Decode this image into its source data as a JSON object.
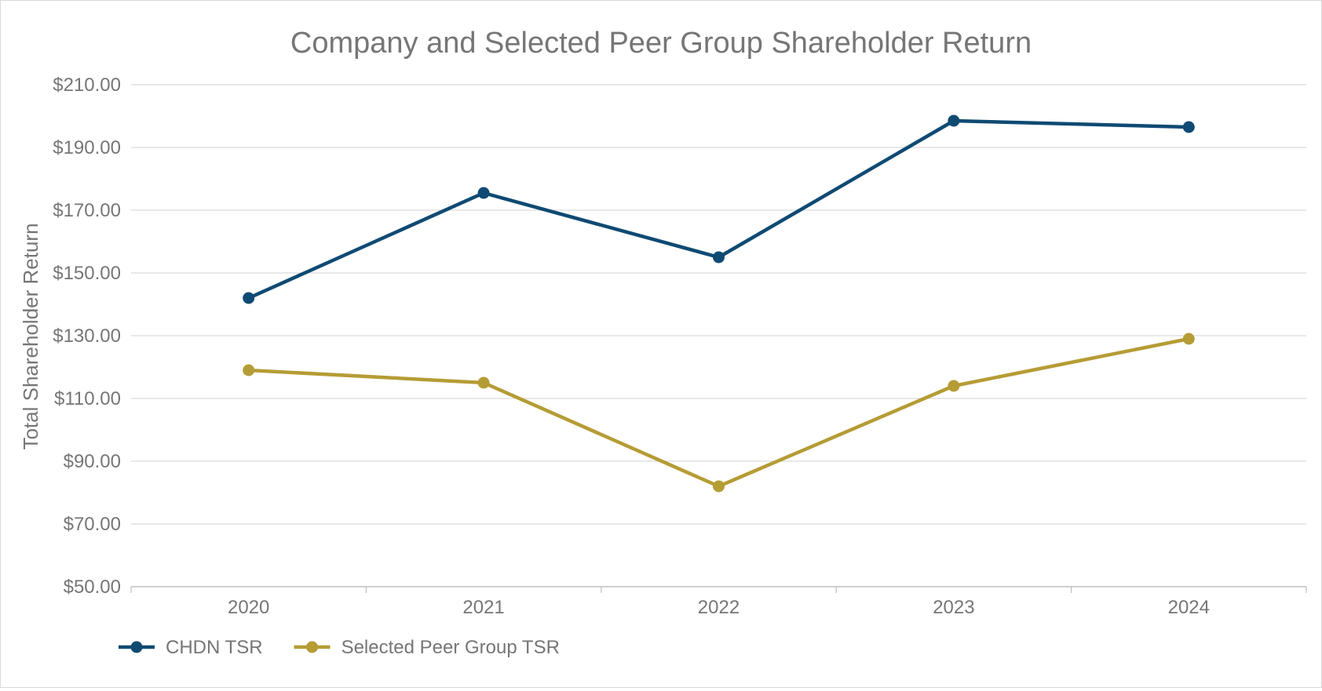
{
  "chart_data": {
    "type": "line",
    "title": "Company and Selected Peer Group Shareholder Return",
    "xlabel": "",
    "ylabel": "Total Shareholder Return",
    "categories": [
      "2020",
      "2021",
      "2022",
      "2023",
      "2024"
    ],
    "ylim": [
      50,
      210
    ],
    "yticks": [
      50,
      70,
      90,
      110,
      130,
      150,
      170,
      190,
      210
    ],
    "ytick_labels": [
      "$50.00",
      "$70.00",
      "$90.00",
      "$110.00",
      "$130.00",
      "$150.00",
      "$170.00",
      "$190.00",
      "$210.00"
    ],
    "grid": true,
    "legend": "bottom-left",
    "series": [
      {
        "name": "CHDN TSR",
        "color": "#0f4a73",
        "values": [
          142,
          175.5,
          155,
          198.5,
          196.5
        ]
      },
      {
        "name": "Selected Peer Group TSR",
        "color": "#b59c35",
        "values": [
          119,
          115,
          82,
          114,
          129
        ]
      }
    ]
  }
}
